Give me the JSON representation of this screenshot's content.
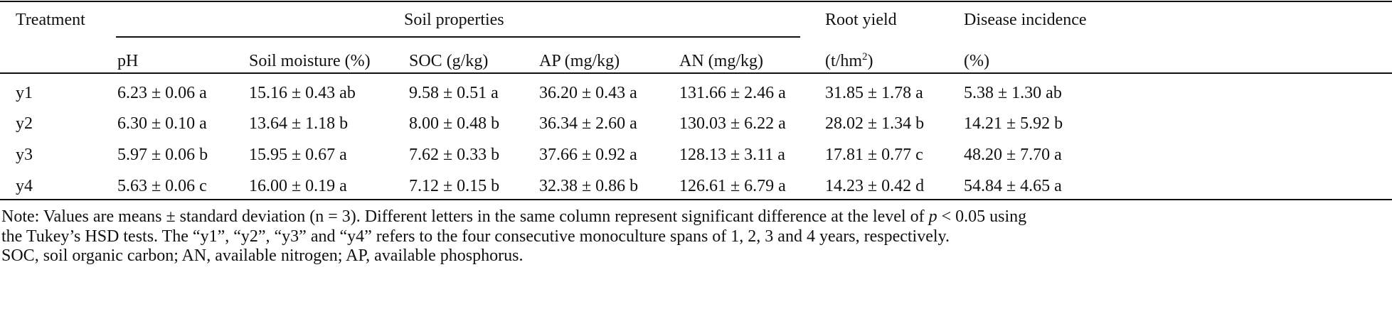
{
  "table": {
    "header": {
      "treatment": "Treatment",
      "group": "Soil properties",
      "root_yield": "Root yield",
      "disease": "Disease incidence",
      "columns": [
        "pH",
        "Soil moisture (%)",
        "SOC (g/kg)",
        "AP (mg/kg)",
        "AN (mg/kg)"
      ],
      "root_unit": [
        "(t/hm",
        "2",
        ")"
      ],
      "disease_unit": "(%)"
    },
    "rows": [
      [
        "y1",
        "6.23 ± 0.06 a",
        "15.16 ± 0.43 ab",
        "9.58 ± 0.51 a",
        "36.20 ± 0.43 a",
        "131.66 ± 2.46 a",
        "31.85 ± 1.78 a",
        "5.38 ± 1.30 ab"
      ],
      [
        "y2",
        "6.30 ± 0.10 a",
        "13.64 ± 1.18 b",
        "8.00 ± 0.48 b",
        "36.34 ± 2.60 a",
        "130.03 ± 6.22 a",
        "28.02 ± 1.34 b",
        "14.21 ± 5.92 b"
      ],
      [
        "y3",
        "5.97 ± 0.06 b",
        "15.95 ± 0.67 a",
        "7.62 ± 0.33 b",
        "37.66 ± 0.92 a",
        "128.13 ± 3.11 a",
        "17.81 ± 0.77 c",
        "48.20 ± 7.70 a"
      ],
      [
        "y4",
        "5.63 ± 0.06 c",
        "16.00 ± 0.19 a",
        "7.12 ± 0.15 b",
        "32.38 ± 0.86 b",
        "126.61 ± 6.79 a",
        "14.23 ± 0.42 d",
        "54.84 ± 4.65 a"
      ]
    ]
  },
  "note": {
    "line1": [
      "Note: Values are means ± standard deviation (n = 3). Different letters in the same column represent significant difference at the level of ",
      "p",
      " < 0.05 using"
    ],
    "line2": "the Tukey’s HSD tests. The “y1”, “y2”, “y3” and “y4” refers to the four consecutive monoculture spans of 1, 2, 3 and 4 years, respectively.",
    "line3": "SOC, soil organic carbon; AN, available nitrogen; AP, available phosphorus."
  }
}
